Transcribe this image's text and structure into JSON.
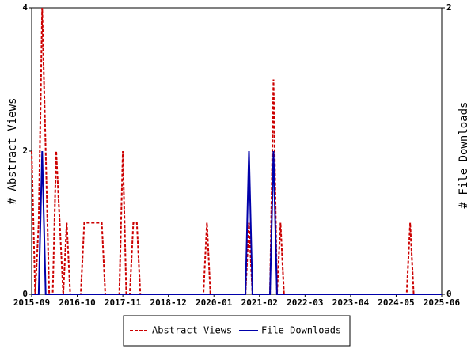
{
  "chart_data": {
    "type": "line",
    "y_label": "# Abstract Views",
    "y2_label": "# File Downloads",
    "x": [
      "2015-09",
      "2015-10",
      "2015-11",
      "2015-12",
      "2016-01",
      "2016-02",
      "2016-03",
      "2016-04",
      "2016-05",
      "2016-06",
      "2016-07",
      "2016-08",
      "2016-09",
      "2016-10",
      "2016-11",
      "2016-12",
      "2017-01",
      "2017-02",
      "2017-03",
      "2017-04",
      "2017-05",
      "2017-06",
      "2017-07",
      "2017-08",
      "2017-09",
      "2017-10",
      "2017-11",
      "2017-12",
      "2018-01",
      "2018-02",
      "2018-03",
      "2018-04",
      "2018-05",
      "2018-06",
      "2018-07",
      "2018-08",
      "2018-09",
      "2018-10",
      "2018-11",
      "2018-12",
      "2019-01",
      "2019-02",
      "2019-03",
      "2019-04",
      "2019-05",
      "2019-06",
      "2019-07",
      "2019-08",
      "2019-09",
      "2019-10",
      "2019-11",
      "2019-12",
      "2020-01",
      "2020-02",
      "2020-03",
      "2020-04",
      "2020-05",
      "2020-06",
      "2020-07",
      "2020-08",
      "2020-09",
      "2020-10",
      "2020-11",
      "2020-12",
      "2021-01",
      "2021-02",
      "2021-03",
      "2021-04",
      "2021-05",
      "2021-06",
      "2021-07",
      "2021-08",
      "2021-09",
      "2021-10",
      "2021-11",
      "2021-12",
      "2022-01",
      "2022-02",
      "2022-03",
      "2022-04",
      "2022-05",
      "2022-06",
      "2022-07",
      "2022-08",
      "2022-09",
      "2022-10",
      "2022-11",
      "2022-12",
      "2023-01",
      "2023-02",
      "2023-03",
      "2023-04",
      "2023-05",
      "2023-06",
      "2023-07",
      "2023-08",
      "2023-09",
      "2023-10",
      "2023-11",
      "2023-12",
      "2024-01",
      "2024-02",
      "2024-03",
      "2024-04",
      "2024-05",
      "2024-06",
      "2024-07",
      "2024-08",
      "2024-09",
      "2024-10",
      "2024-11",
      "2024-12",
      "2025-01",
      "2025-02",
      "2025-03",
      "2025-04",
      "2025-05",
      "2025-06"
    ],
    "xticks": [
      "2015-09",
      "2016-10",
      "2017-11",
      "2018-12",
      "2020-01",
      "2021-02",
      "2022-03",
      "2023-04",
      "2024-05",
      "2025-06"
    ],
    "ylim": [
      0,
      4
    ],
    "yticks": [
      0,
      2,
      4
    ],
    "y2lim": [
      0,
      2
    ],
    "y2ticks": [
      0,
      2
    ],
    "legend": "bottom",
    "series": [
      {
        "name": "Abstract Views",
        "color": "#cc0000",
        "dash": true,
        "values": [
          2,
          0,
          1,
          4,
          2,
          0,
          0,
          2,
          1,
          0,
          1,
          0,
          0,
          0,
          0,
          1,
          1,
          1,
          1,
          1,
          1,
          0,
          0,
          0,
          0,
          0,
          2,
          0,
          0,
          1,
          1,
          0,
          0,
          0,
          0,
          0,
          0,
          0,
          0,
          0,
          0,
          0,
          0,
          0,
          0,
          0,
          0,
          0,
          0,
          0,
          1,
          0,
          0,
          0,
          0,
          0,
          0,
          0,
          0,
          0,
          0,
          0,
          1,
          0,
          0,
          0,
          0,
          0,
          0,
          3,
          0,
          1,
          0,
          0,
          0,
          0,
          0,
          0,
          0,
          0,
          0,
          0,
          0,
          0,
          0,
          0,
          0,
          0,
          0,
          0,
          0,
          0,
          0,
          0,
          0,
          0,
          0,
          0,
          0,
          0,
          0,
          0,
          0,
          0,
          0,
          0,
          0,
          0,
          1,
          0,
          0,
          0,
          0,
          0,
          0,
          0,
          0,
          0
        ]
      },
      {
        "name": "File Downloads",
        "color": "#0000aa",
        "dash": false,
        "axis": "y2",
        "values": [
          0,
          0,
          0,
          1,
          0,
          0,
          0,
          0,
          0,
          0,
          0,
          0,
          0,
          0,
          0,
          0,
          0,
          0,
          0,
          0,
          0,
          0,
          0,
          0,
          0,
          0,
          0,
          0,
          0,
          0,
          0,
          0,
          0,
          0,
          0,
          0,
          0,
          0,
          0,
          0,
          0,
          0,
          0,
          0,
          0,
          0,
          0,
          0,
          0,
          0,
          0,
          0,
          0,
          0,
          0,
          0,
          0,
          0,
          0,
          0,
          0,
          0,
          1,
          0,
          0,
          0,
          0,
          0,
          0,
          1,
          0,
          0,
          0,
          0,
          0,
          0,
          0,
          0,
          0,
          0,
          0,
          0,
          0,
          0,
          0,
          0,
          0,
          0,
          0,
          0,
          0,
          0,
          0,
          0,
          0,
          0,
          0,
          0,
          0,
          0,
          0,
          0,
          0,
          0,
          0,
          0,
          0,
          0,
          0,
          0,
          0,
          0,
          0,
          0,
          0,
          0,
          0,
          0
        ]
      }
    ]
  }
}
